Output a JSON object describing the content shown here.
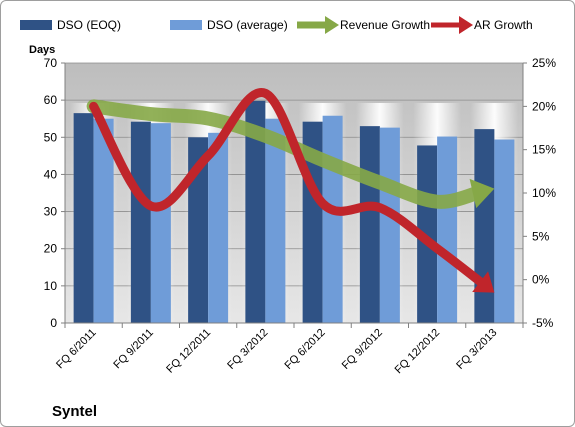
{
  "chart_data": {
    "type": "bar",
    "title": "Syntel",
    "ylabel": "Days",
    "categories": [
      "FQ 6/2011",
      "FQ 9/2011",
      "FQ 12/2011",
      "FQ 3/2012",
      "FQ 6/2012",
      "FQ 9/2012",
      "FQ 12/2012",
      "FQ 3/2013"
    ],
    "series": [
      {
        "name": "DSO (EOQ)",
        "type": "bar",
        "axis": "left",
        "color": "#2f5285",
        "values": [
          56.5,
          54.2,
          50.0,
          59.8,
          54.2,
          53.0,
          47.8,
          52.2
        ]
      },
      {
        "name": "DSO (average)",
        "type": "bar",
        "axis": "left",
        "color": "#6f9cd8",
        "values": [
          55.0,
          53.8,
          51.2,
          55.0,
          55.8,
          52.6,
          50.2,
          49.4
        ]
      },
      {
        "name": "Revenue Growth",
        "type": "line",
        "axis": "right",
        "style": "arrow",
        "color": "#86a847",
        "values": [
          20.0,
          19.1,
          18.6,
          16.6,
          13.8,
          11.2,
          9.0,
          10.5
        ]
      },
      {
        "name": "AR Growth",
        "type": "line",
        "axis": "right",
        "style": "arrow",
        "color": "#c0252b",
        "values": [
          20.0,
          8.5,
          14.3,
          21.5,
          8.8,
          8.3,
          3.6,
          -1.5
        ]
      }
    ],
    "ylim": [
      0,
      70
    ],
    "yticks": [
      0,
      10,
      20,
      30,
      40,
      50,
      60,
      70
    ],
    "y2lim": [
      -5,
      25
    ],
    "y2ticks": [
      "-5%",
      "0%",
      "5%",
      "10%",
      "15%",
      "20%",
      "25%"
    ],
    "grid": true,
    "legend_position": "top"
  }
}
